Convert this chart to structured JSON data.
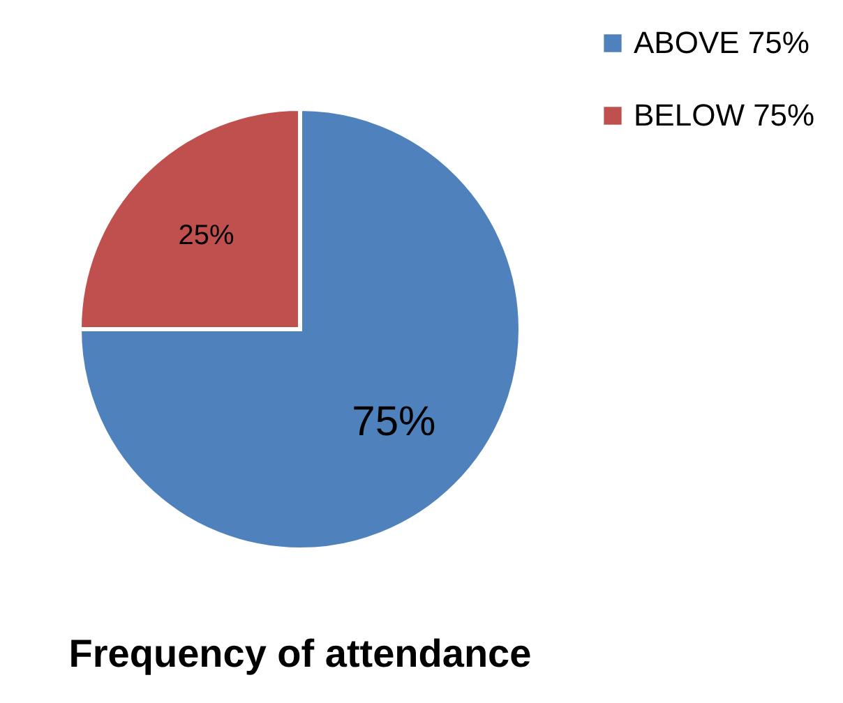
{
  "chart_data": {
    "type": "pie",
    "title": "Frequency of attendance",
    "categories": [
      "ABOVE 75%",
      "BELOW 75%"
    ],
    "values": [
      75,
      25
    ],
    "colors": [
      "#4f81bd",
      "#c0504d"
    ],
    "value_labels": [
      "75%",
      "25%"
    ],
    "legend": "right"
  }
}
